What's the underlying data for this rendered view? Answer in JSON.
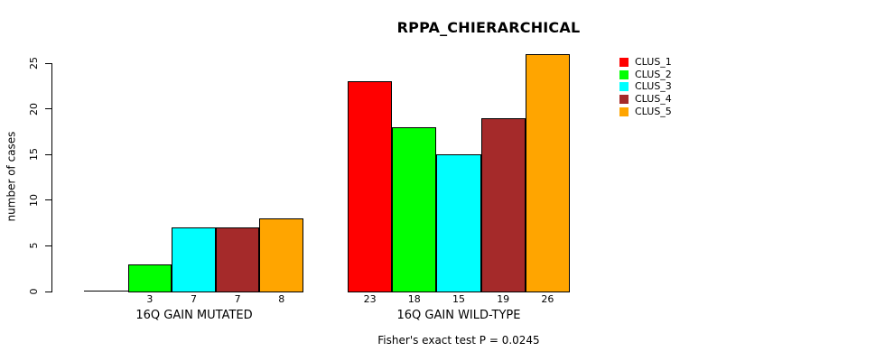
{
  "chart_data": {
    "type": "bar",
    "title": "RPPA_CHIERARCHICAL",
    "ylabel": "number of cases",
    "subtitle": "Fisher's exact test P = 0.0245",
    "categories": [
      "16Q GAIN MUTATED",
      "16Q GAIN WILD-TYPE"
    ],
    "series": [
      {
        "name": "CLUS_1",
        "color": "#FF0000",
        "values": [
          0,
          23
        ]
      },
      {
        "name": "CLUS_2",
        "color": "#00FF00",
        "values": [
          3,
          18
        ]
      },
      {
        "name": "CLUS_3",
        "color": "#00FFFF",
        "values": [
          7,
          15
        ]
      },
      {
        "name": "CLUS_4",
        "color": "#A52A2A",
        "values": [
          7,
          19
        ]
      },
      {
        "name": "CLUS_5",
        "color": "#FFA500",
        "values": [
          8,
          26
        ]
      }
    ],
    "yticks": [
      0,
      5,
      10,
      15,
      20,
      25
    ],
    "ylim": [
      0,
      26
    ],
    "bar_labels": {
      "16Q GAIN MUTATED": [
        "",
        "3",
        "7",
        "7",
        "8"
      ],
      "16Q GAIN WILD-TYPE": [
        "23",
        "18",
        "15",
        "19",
        "26"
      ]
    },
    "legend_position": "right",
    "grid": false,
    "background": "#ffffff"
  }
}
